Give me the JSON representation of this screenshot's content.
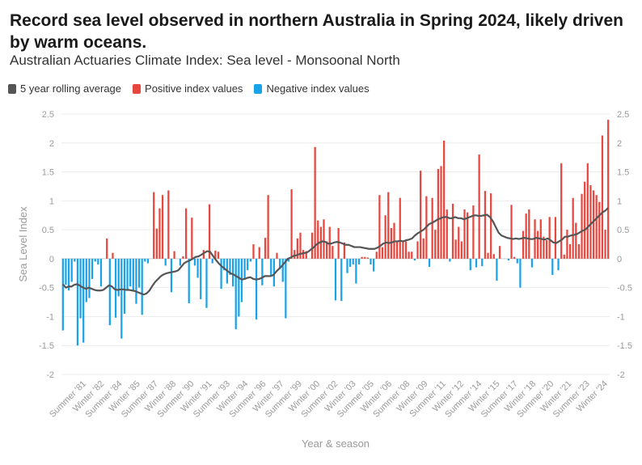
{
  "title": "Record sea level observed in northern Australia in Spring 2024, likely driven by warm oceans.",
  "subtitle": "Australian Actuaries Climate Index: Sea level - Monsoonal North",
  "legend": [
    {
      "label": "5 year rolling average",
      "color": "#555555"
    },
    {
      "label": "Positive index values",
      "color": "#e8473f"
    },
    {
      "label": "Negative index values",
      "color": "#1aa3e8"
    }
  ],
  "chart_data": {
    "type": "bar",
    "title": "Record sea level observed in northern Australia in Spring 2024, likely driven by warm oceans.",
    "xlabel": "Year & season",
    "ylabel": "Sea Level Index",
    "ylim": [
      -2,
      2.5
    ],
    "yticks": [
      -2,
      -1.5,
      -1,
      -0.5,
      0,
      0.5,
      1,
      1.5,
      2,
      2.5
    ],
    "ytick_labels": [
      "-2",
      "-1.5",
      "-1",
      "-0.5",
      "0",
      "0.5",
      "1",
      "1.5",
      "2",
      "2.5"
    ],
    "x_tick_labels": [
      "Summer '81",
      "Winter '82",
      "Summer '84",
      "Winter '85",
      "Summer '87",
      "Winter '88",
      "Summer '90",
      "Winter '91",
      "Summer '93",
      "Winter '94",
      "Summer '96",
      "Winter '97",
      "Summer '99",
      "Winter '00",
      "Summer '02",
      "Winter '03",
      "Summer '05",
      "Winter '06",
      "Summer '08",
      "Winter '09",
      "Summer '11",
      "Winter '12",
      "Summer '14",
      "Winter '15",
      "Summer '17",
      "Winter '18",
      "Summer '20",
      "Winter '21",
      "Summer '23",
      "Winter '24"
    ],
    "series": [
      {
        "name": "Seasonal index",
        "values": [
          -1.24,
          -0.45,
          -0.55,
          -0.4,
          -0.05,
          -1.5,
          -1.03,
          -1.45,
          -0.75,
          -0.68,
          -0.35,
          -0.05,
          -0.1,
          -0.48,
          0.0,
          0.35,
          -1.15,
          0.1,
          -1.02,
          -0.65,
          -1.38,
          -0.95,
          -0.55,
          -0.48,
          -0.55,
          -0.78,
          -0.5,
          -0.97,
          -0.05,
          -0.08,
          0.0,
          1.15,
          0.52,
          0.87,
          1.1,
          -0.12,
          1.18,
          -0.58,
          0.13,
          0.0,
          -0.12,
          0.04,
          0.87,
          -0.77,
          0.71,
          -0.12,
          -0.33,
          -0.7,
          0.15,
          -0.85,
          0.94,
          -0.08,
          0.14,
          0.12,
          -0.52,
          -0.2,
          -0.43,
          -0.28,
          -0.48,
          -1.22,
          -1.0,
          -0.75,
          -0.35,
          -0.2,
          -0.05,
          0.25,
          -1.05,
          0.2,
          -0.46,
          0.36,
          1.1,
          -0.3,
          -0.48,
          0.1,
          -0.18,
          -0.4,
          -1.03,
          -0.05,
          1.2,
          0.15,
          0.35,
          0.45,
          0.15,
          0.13,
          0.0,
          0.45,
          1.93,
          0.66,
          0.55,
          0.68,
          0.3,
          0.55,
          0.22,
          -0.72,
          0.53,
          -0.73,
          0.28,
          -0.25,
          -0.14,
          -0.1,
          -0.43,
          -0.1,
          0.03,
          0.03,
          0.02,
          -0.1,
          -0.22,
          0.12,
          1.1,
          0.2,
          0.75,
          1.15,
          0.53,
          0.62,
          0.3,
          1.05,
          0.31,
          0.3,
          0.12,
          0.12,
          -0.03,
          0.3,
          1.52,
          0.35,
          1.08,
          -0.14,
          1.05,
          0.5,
          1.55,
          1.6,
          2.04,
          0.85,
          -0.05,
          0.95,
          0.33,
          0.55,
          0.3,
          0.85,
          0.8,
          -0.2,
          0.92,
          -0.15,
          1.8,
          -0.13,
          1.17,
          0.1,
          1.13,
          0.08,
          -0.38,
          0.22,
          0.0,
          0.0,
          -0.03,
          0.93,
          0.03,
          -0.08,
          -0.5,
          0.48,
          0.78,
          0.85,
          -0.15,
          0.68,
          0.48,
          0.68,
          0.38,
          0.32,
          0.72,
          -0.28,
          0.72,
          -0.2,
          1.65,
          0.07,
          0.5,
          0.25,
          1.05,
          0.62,
          0.25,
          1.12,
          1.33,
          1.65,
          1.27,
          1.18,
          1.1,
          0.98,
          2.13,
          0.5,
          2.4
        ]
      },
      {
        "name": "5 year rolling average",
        "values": [
          -0.44,
          -0.5,
          -0.48,
          -0.48,
          -0.45,
          -0.44,
          -0.47,
          -0.5,
          -0.52,
          -0.5,
          -0.52,
          -0.54,
          -0.55,
          -0.55,
          -0.54,
          -0.5,
          -0.46,
          -0.48,
          -0.53,
          -0.54,
          -0.53,
          -0.53,
          -0.54,
          -0.54,
          -0.55,
          -0.56,
          -0.58,
          -0.6,
          -0.62,
          -0.6,
          -0.55,
          -0.47,
          -0.4,
          -0.35,
          -0.3,
          -0.27,
          -0.25,
          -0.24,
          -0.23,
          -0.22,
          -0.2,
          -0.14,
          -0.08,
          -0.05,
          -0.03,
          0.0,
          0.03,
          0.04,
          0.07,
          0.1,
          0.13,
          0.12,
          0.05,
          -0.02,
          -0.08,
          -0.13,
          -0.17,
          -0.21,
          -0.25,
          -0.27,
          -0.3,
          -0.33,
          -0.36,
          -0.35,
          -0.33,
          -0.32,
          -0.35,
          -0.36,
          -0.35,
          -0.33,
          -0.3,
          -0.3,
          -0.3,
          -0.28,
          -0.22,
          -0.17,
          -0.12,
          -0.06,
          0.0,
          0.02,
          0.05,
          0.06,
          0.08,
          0.09,
          0.1,
          0.12,
          0.16,
          0.2,
          0.25,
          0.28,
          0.3,
          0.29,
          0.26,
          0.26,
          0.28,
          0.29,
          0.28,
          0.26,
          0.24,
          0.24,
          0.22,
          0.2,
          0.2,
          0.2,
          0.19,
          0.18,
          0.17,
          0.17,
          0.17,
          0.19,
          0.22,
          0.26,
          0.28,
          0.27,
          0.28,
          0.3,
          0.3,
          0.31,
          0.3,
          0.32,
          0.33,
          0.35,
          0.4,
          0.44,
          0.47,
          0.5,
          0.55,
          0.6,
          0.62,
          0.65,
          0.68,
          0.7,
          0.72,
          0.72,
          0.7,
          0.7,
          0.72,
          0.7,
          0.7,
          0.68,
          0.7,
          0.72,
          0.74,
          0.75,
          0.74,
          0.74,
          0.75,
          0.76,
          0.72,
          0.65,
          0.55,
          0.45,
          0.4,
          0.38,
          0.36,
          0.35,
          0.34,
          0.35,
          0.34,
          0.35,
          0.36,
          0.35,
          0.34,
          0.34,
          0.36,
          0.35,
          0.34,
          0.33,
          0.35,
          0.32,
          0.28,
          0.27,
          0.3,
          0.33,
          0.38,
          0.38,
          0.4,
          0.41,
          0.42,
          0.45,
          0.48,
          0.5,
          0.55,
          0.6,
          0.65,
          0.7,
          0.75,
          0.8,
          0.83,
          0.88
        ]
      }
    ]
  }
}
